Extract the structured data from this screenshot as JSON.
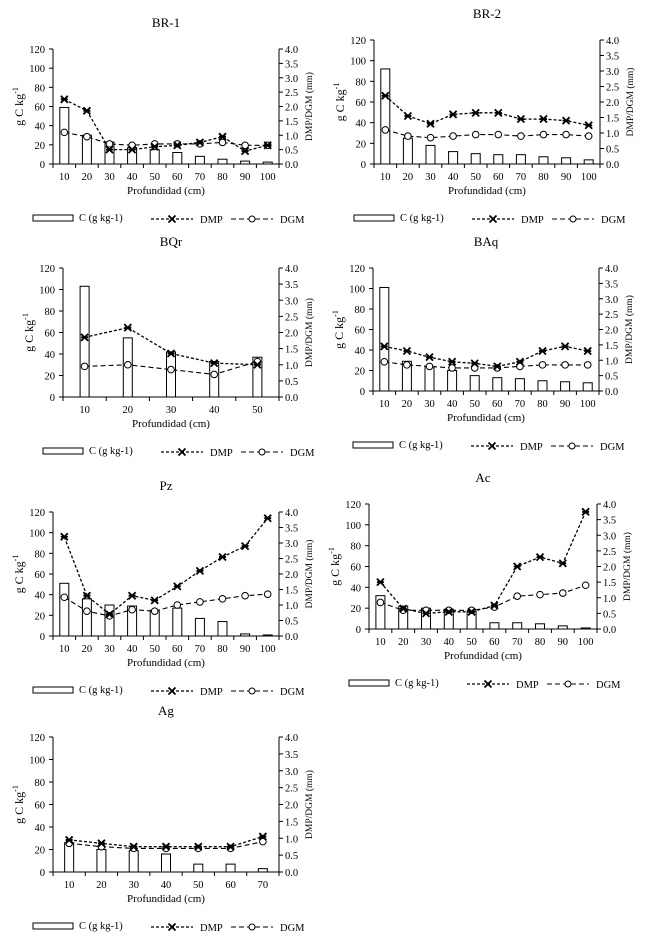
{
  "legend": {
    "bar_label": "C (g kg-1)",
    "dmp_label": "DMP",
    "dgm_label": "DGM"
  },
  "axes": {
    "x_label": "Profundidad (cm)",
    "y_left_label": "g C kg",
    "y_left_exp": "-1",
    "y_right_label": "DMP/DGM (mm)",
    "y_left_ticks": [
      "0",
      "20",
      "40",
      "60",
      "80",
      "100",
      "120"
    ],
    "y_right_ticks": [
      "0.0",
      "0.5",
      "1.0",
      "1.5",
      "2.0",
      "2.5",
      "3.0",
      "3.5",
      "4.0"
    ]
  },
  "chart_data": [
    {
      "type": "bar+line",
      "title": "BR-1",
      "xlabel": "Profundidad (cm)",
      "ylabel": "g C kg-1",
      "y2label": "DMP/DGM (mm)",
      "ylim": [
        0,
        120
      ],
      "y2lim": [
        0,
        4
      ],
      "categories": [
        "10",
        "20",
        "30",
        "40",
        "50",
        "60",
        "70",
        "80",
        "90",
        "100"
      ],
      "series": [
        {
          "name": "C (g kg-1)",
          "kind": "bar",
          "axis": "left",
          "values": [
            59,
            30,
            23,
            17,
            15,
            12,
            8,
            5,
            3,
            2
          ]
        },
        {
          "name": "DMP",
          "kind": "line",
          "axis": "right",
          "values": [
            2.25,
            1.85,
            0.5,
            0.5,
            0.6,
            0.65,
            0.75,
            0.95,
            0.45,
            0.65
          ]
        },
        {
          "name": "DGM",
          "kind": "line",
          "axis": "right",
          "values": [
            1.1,
            0.95,
            0.7,
            0.65,
            0.7,
            0.7,
            0.7,
            0.75,
            0.65,
            0.65
          ]
        }
      ]
    },
    {
      "type": "bar+line",
      "title": "BR-2",
      "xlabel": "Profundidad (cm)",
      "ylabel": "g C kg-1",
      "y2label": "DMP/DGM (mm)",
      "ylim": [
        0,
        120
      ],
      "y2lim": [
        0,
        4
      ],
      "categories": [
        "10",
        "20",
        "30",
        "40",
        "50",
        "60",
        "70",
        "80",
        "90",
        "100"
      ],
      "series": [
        {
          "name": "C (g kg-1)",
          "kind": "bar",
          "axis": "left",
          "values": [
            92,
            25,
            18,
            12,
            10,
            9,
            9,
            7,
            6,
            4
          ]
        },
        {
          "name": "DMP",
          "kind": "line",
          "axis": "right",
          "values": [
            2.2,
            1.55,
            1.3,
            1.6,
            1.65,
            1.65,
            1.45,
            1.45,
            1.4,
            1.25
          ]
        },
        {
          "name": "DGM",
          "kind": "line",
          "axis": "right",
          "values": [
            1.1,
            0.9,
            0.85,
            0.9,
            0.95,
            0.95,
            0.9,
            0.95,
            0.95,
            0.9
          ]
        }
      ]
    },
    {
      "type": "bar+line",
      "title": "BQr",
      "xlabel": "Profundidad (cm)",
      "ylabel": "g C kg-1",
      "y2label": "DMP/DGM (mm)",
      "ylim": [
        0,
        120
      ],
      "y2lim": [
        0,
        4
      ],
      "categories": [
        "10",
        "20",
        "30",
        "40",
        "50"
      ],
      "series": [
        {
          "name": "C (g kg-1)",
          "kind": "bar",
          "axis": "left",
          "values": [
            103,
            55,
            42,
            33,
            37
          ]
        },
        {
          "name": "DMP",
          "kind": "line",
          "axis": "right",
          "values": [
            1.85,
            2.15,
            1.35,
            1.05,
            1.0
          ]
        },
        {
          "name": "DGM",
          "kind": "line",
          "axis": "right",
          "values": [
            0.95,
            1.0,
            0.85,
            0.7,
            1.1
          ]
        }
      ]
    },
    {
      "type": "bar+line",
      "title": "BAq",
      "xlabel": "Profundidad (cm)",
      "ylabel": "g C kg-1",
      "y2label": "DMP/DGM (mm)",
      "ylim": [
        0,
        120
      ],
      "y2lim": [
        0,
        4
      ],
      "categories": [
        "10",
        "20",
        "30",
        "40",
        "50",
        "60",
        "70",
        "80",
        "90",
        "100"
      ],
      "series": [
        {
          "name": "C (g kg-1)",
          "kind": "bar",
          "axis": "left",
          "values": [
            101,
            29,
            24,
            20,
            15,
            13,
            12,
            10,
            9,
            8
          ]
        },
        {
          "name": "DMP",
          "kind": "line",
          "axis": "right",
          "values": [
            1.45,
            1.3,
            1.1,
            0.95,
            0.9,
            0.8,
            0.95,
            1.3,
            1.45,
            1.3
          ]
        },
        {
          "name": "DGM",
          "kind": "line",
          "axis": "right",
          "values": [
            0.95,
            0.85,
            0.8,
            0.75,
            0.75,
            0.75,
            0.8,
            0.85,
            0.85,
            0.85
          ]
        }
      ]
    },
    {
      "type": "bar+line",
      "title": "Pz",
      "xlabel": "Profundidad (cm)",
      "ylabel": "g C kg-1",
      "y2label": "DMP/DGM (mm)",
      "ylim": [
        0,
        120
      ],
      "y2lim": [
        0,
        4
      ],
      "categories": [
        "10",
        "20",
        "30",
        "40",
        "50",
        "60",
        "70",
        "80",
        "90",
        "100"
      ],
      "series": [
        {
          "name": "C (g kg-1)",
          "kind": "bar",
          "axis": "left",
          "values": [
            51,
            36,
            30,
            29,
            25,
            27,
            17,
            14,
            2,
            1
          ]
        },
        {
          "name": "DMP",
          "kind": "line",
          "axis": "right",
          "values": [
            3.2,
            1.3,
            0.7,
            1.3,
            1.15,
            1.6,
            2.1,
            2.55,
            2.9,
            3.8
          ]
        },
        {
          "name": "DGM",
          "kind": "line",
          "axis": "right",
          "values": [
            1.25,
            0.8,
            0.65,
            0.85,
            0.8,
            1.0,
            1.1,
            1.2,
            1.3,
            1.35
          ]
        }
      ]
    },
    {
      "type": "bar+line",
      "title": "Ac",
      "xlabel": "Profundidad (cm)",
      "ylabel": "g C kg-1",
      "y2label": "DMP/DGM (mm)",
      "ylim": [
        0,
        120
      ],
      "y2lim": [
        0,
        4
      ],
      "categories": [
        "10",
        "20",
        "30",
        "40",
        "50",
        "60",
        "70",
        "80",
        "90",
        "100"
      ],
      "series": [
        {
          "name": "C (g kg-1)",
          "kind": "bar",
          "axis": "left",
          "values": [
            32,
            22,
            20,
            19,
            17,
            6,
            6,
            5,
            3,
            1
          ]
        },
        {
          "name": "DMP",
          "kind": "line",
          "axis": "right",
          "values": [
            1.5,
            0.65,
            0.5,
            0.55,
            0.55,
            0.75,
            2.0,
            2.3,
            2.1,
            3.75
          ]
        },
        {
          "name": "DGM",
          "kind": "line",
          "axis": "right",
          "values": [
            0.85,
            0.6,
            0.6,
            0.6,
            0.6,
            0.7,
            1.05,
            1.1,
            1.15,
            1.4
          ]
        }
      ]
    },
    {
      "type": "bar+line",
      "title": "Ag",
      "xlabel": "Profundidad (cm)",
      "ylabel": "g C kg-1",
      "y2label": "DMP/DGM (mm)",
      "ylim": [
        0,
        120
      ],
      "y2lim": [
        0,
        4
      ],
      "categories": [
        "10",
        "20",
        "30",
        "40",
        "50",
        "60",
        "70"
      ],
      "series": [
        {
          "name": "C (g kg-1)",
          "kind": "bar",
          "axis": "left",
          "values": [
            26,
            20,
            19,
            16,
            7,
            7,
            3
          ]
        },
        {
          "name": "DMP",
          "kind": "line",
          "axis": "right",
          "values": [
            0.95,
            0.85,
            0.75,
            0.75,
            0.75,
            0.75,
            1.05
          ]
        },
        {
          "name": "DGM",
          "kind": "line",
          "axis": "right",
          "values": [
            0.85,
            0.75,
            0.7,
            0.7,
            0.7,
            0.7,
            0.9
          ]
        }
      ]
    }
  ]
}
